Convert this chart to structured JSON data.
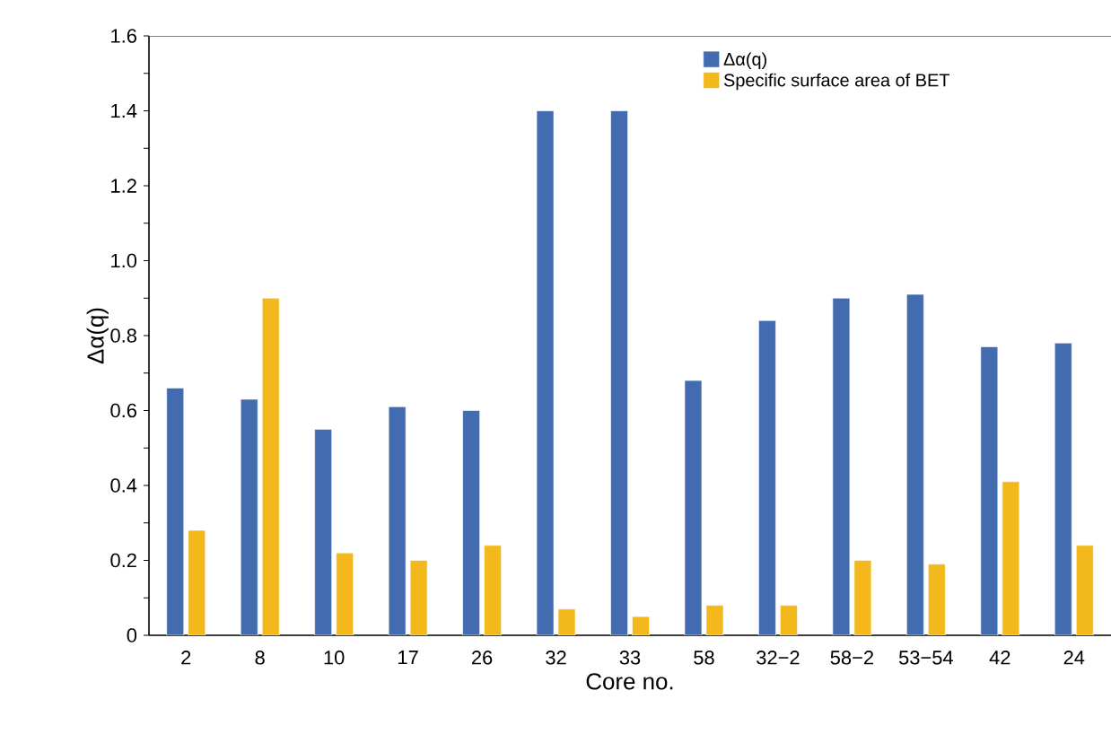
{
  "chart_data": {
    "type": "bar",
    "xlabel": "Core no.",
    "ylabel": "Δα(q)",
    "categories": [
      "2",
      "8",
      "10",
      "17",
      "26",
      "32",
      "33",
      "58",
      "32−2",
      "58−2",
      "53−54",
      "42",
      "24"
    ],
    "series": [
      {
        "name": "Δα(q)",
        "color": "#426bb0",
        "values": [
          0.66,
          0.63,
          0.55,
          0.61,
          0.6,
          1.4,
          1.4,
          0.68,
          0.84,
          0.9,
          0.91,
          0.77,
          0.78
        ]
      },
      {
        "name": "Specific surface area of BET",
        "color": "#f2b81c",
        "values": [
          0.28,
          0.9,
          0.22,
          0.2,
          0.24,
          0.07,
          0.05,
          0.08,
          0.08,
          0.2,
          0.19,
          0.41,
          0.24
        ]
      }
    ],
    "ylim": [
      0,
      1.6
    ],
    "yticks": [
      0,
      0.2,
      0.4,
      0.6,
      0.8,
      {
        "value": 1.0,
        "label": "1.0"
      },
      1.2,
      1.4,
      1.6
    ],
    "legend": "top right"
  }
}
